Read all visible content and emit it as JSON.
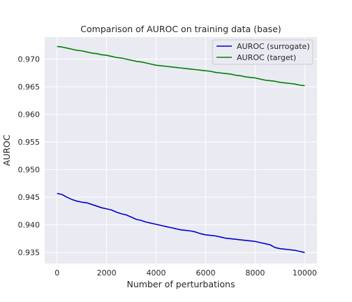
{
  "chart_data": {
    "type": "line",
    "title": "Comparison of AUROC on training data (base)",
    "xlabel": "Number of perturbations",
    "ylabel": "AUROC",
    "xlim": [
      -500,
      10500
    ],
    "ylim": [
      0.933,
      0.974
    ],
    "xticks": [
      0,
      2000,
      4000,
      6000,
      8000,
      10000
    ],
    "yticks": [
      0.935,
      0.94,
      0.945,
      0.95,
      0.955,
      0.96,
      0.965,
      0.97
    ],
    "ytick_labels": [
      "0.935",
      "0.940",
      "0.945",
      "0.950",
      "0.955",
      "0.960",
      "0.965",
      "0.970"
    ],
    "xtick_labels": [
      "0",
      "2000",
      "4000",
      "6000",
      "8000",
      "10000"
    ],
    "grid": true,
    "legend_position": "top-right",
    "background_color": "#eaeaf2",
    "series": [
      {
        "name": "AUROC (surrogate)",
        "color": "#0000cc",
        "x": [
          0,
          200,
          400,
          600,
          800,
          1000,
          1200,
          1400,
          1600,
          1800,
          2000,
          2200,
          2400,
          2600,
          2800,
          3000,
          3200,
          3400,
          3600,
          3800,
          4000,
          4200,
          4400,
          4600,
          4800,
          5000,
          5200,
          5400,
          5600,
          5800,
          6000,
          6200,
          6400,
          6600,
          6800,
          7000,
          7200,
          7400,
          7600,
          7800,
          8000,
          8200,
          8400,
          8600,
          8800,
          9000,
          9200,
          9400,
          9600,
          9800,
          10000
        ],
        "values": [
          0.9457,
          0.9455,
          0.945,
          0.9446,
          0.9443,
          0.9441,
          0.944,
          0.9437,
          0.9434,
          0.9431,
          0.9429,
          0.9427,
          0.9423,
          0.942,
          0.9418,
          0.9414,
          0.941,
          0.9408,
          0.9405,
          0.9403,
          0.9401,
          0.9399,
          0.9397,
          0.9395,
          0.9393,
          0.9391,
          0.939,
          0.9389,
          0.9387,
          0.9384,
          0.9382,
          0.9381,
          0.938,
          0.9378,
          0.9376,
          0.9375,
          0.9374,
          0.9373,
          0.9372,
          0.9371,
          0.937,
          0.9368,
          0.9366,
          0.9364,
          0.9359,
          0.9357,
          0.9356,
          0.9355,
          0.9354,
          0.9352,
          0.935
        ]
      },
      {
        "name": "AUROC (target)",
        "color": "#008000",
        "x": [
          0,
          200,
          400,
          600,
          800,
          1000,
          1200,
          1400,
          1600,
          1800,
          2000,
          2200,
          2400,
          2600,
          2800,
          3000,
          3200,
          3400,
          3600,
          3800,
          4000,
          4200,
          4400,
          4600,
          4800,
          5000,
          5200,
          5400,
          5600,
          5800,
          6000,
          6200,
          6400,
          6600,
          6800,
          7000,
          7200,
          7400,
          7600,
          7800,
          8000,
          8200,
          8400,
          8600,
          8800,
          9000,
          9200,
          9400,
          9600,
          9800,
          10000
        ],
        "values": [
          0.9723,
          0.9722,
          0.972,
          0.9718,
          0.9716,
          0.9715,
          0.9713,
          0.9711,
          0.971,
          0.9708,
          0.9707,
          0.9705,
          0.9703,
          0.9702,
          0.97,
          0.9698,
          0.9696,
          0.9695,
          0.9693,
          0.9691,
          0.9689,
          0.9688,
          0.9687,
          0.9686,
          0.9685,
          0.9684,
          0.9683,
          0.9682,
          0.9681,
          0.968,
          0.9679,
          0.9678,
          0.9676,
          0.9675,
          0.9674,
          0.9673,
          0.9671,
          0.967,
          0.9668,
          0.9667,
          0.9666,
          0.9664,
          0.9662,
          0.9661,
          0.966,
          0.9658,
          0.9657,
          0.9656,
          0.9655,
          0.9653,
          0.9652
        ]
      }
    ]
  }
}
